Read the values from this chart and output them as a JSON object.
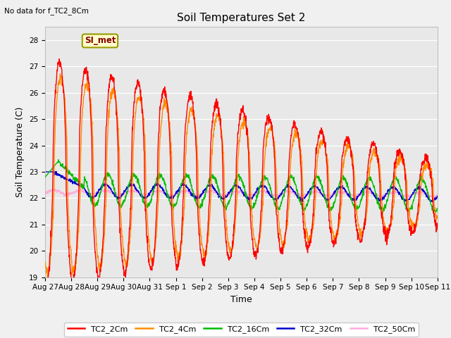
{
  "title": "Soil Temperatures Set 2",
  "subtitle": "No data for f_TC2_8Cm",
  "xlabel": "Time",
  "ylabel": "Soil Temperature (C)",
  "ylim": [
    19.0,
    28.5
  ],
  "yticks": [
    19.0,
    20.0,
    21.0,
    22.0,
    23.0,
    24.0,
    25.0,
    26.0,
    27.0,
    28.0
  ],
  "fig_facecolor": "#f0f0f0",
  "plot_facecolor": "#e8e8e8",
  "series_colors": {
    "TC2_2Cm": "#ff0000",
    "TC2_4Cm": "#ff8c00",
    "TC2_16Cm": "#00bb00",
    "TC2_32Cm": "#0000cc",
    "TC2_50Cm": "#ffaadd"
  },
  "legend_label": "SI_met",
  "legend_bg": "#ffffcc",
  "legend_border": "#999900",
  "tick_labels": [
    "Aug 27",
    "Aug 28",
    "Aug 29",
    "Aug 30",
    "Aug 31",
    "Sep 1",
    "Sep 2",
    "Sep 3",
    "Sep 4",
    "Sep 5",
    "Sep 6",
    "Sep 7",
    "Sep 8",
    "Sep 9",
    "Sep 10",
    "Sep 11"
  ],
  "tick_positions": [
    0,
    1,
    2,
    3,
    4,
    5,
    6,
    7,
    8,
    9,
    10,
    11,
    12,
    13,
    14,
    15
  ]
}
